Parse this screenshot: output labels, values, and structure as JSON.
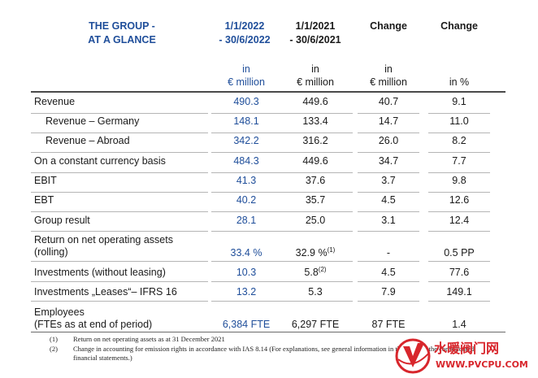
{
  "header": {
    "title": "THE GROUP -\nAT A GLANCE",
    "col1": "1/1/2022\n- 30/6/2022",
    "col2": "1/1/2021\n- 30/6/2021",
    "col3": "Change",
    "col4": "Change"
  },
  "units": {
    "col1": "in\n€ million",
    "col2": "in\n€ million",
    "col3": "in\n€ million",
    "col4": "in %"
  },
  "rows": [
    {
      "label": "Revenue",
      "v1": "490.3",
      "v2": "449.6",
      "v3": "40.7",
      "v4": "9.1"
    },
    {
      "label": "Revenue – Germany",
      "v1": "148.1",
      "v2": "133.4",
      "v3": "14.7",
      "v4": "11.0"
    },
    {
      "label": "Revenue – Abroad",
      "v1": "342.2",
      "v2": "316.2",
      "v3": "26.0",
      "v4": "8.2"
    },
    {
      "label": "On a constant currency basis",
      "v1": "484.3",
      "v2": "449.6",
      "v3": "34.7",
      "v4": "7.7"
    },
    {
      "label": "EBIT",
      "v1": "41.3",
      "v2": "37.6",
      "v3": "3.7",
      "v4": "9.8"
    },
    {
      "label": "EBT",
      "v1": "40.2",
      "v2": "35.7",
      "v3": "4.5",
      "v4": "12.6"
    },
    {
      "label": "Group result",
      "v1": "28.1",
      "v2": "25.0",
      "v3": "3.1",
      "v4": "12.4"
    },
    {
      "label": "Return on net operating assets\n(rolling)",
      "v1": "33.4 %",
      "v2": "32.9 %",
      "v2_sup": "(1)",
      "v3": "-",
      "v4": "0.5 PP"
    },
    {
      "label": "Investments (without leasing)",
      "v1": "10.3",
      "v2": "5.8",
      "v2_sup": "(2)",
      "v3": "4.5",
      "v4": "77.6"
    },
    {
      "label": "Investments „Leases“– IFRS 16",
      "v1": "13.2",
      "v2": "5.3",
      "v3": "7.9",
      "v4": "149.1"
    },
    {
      "label": "Employees\n(FTEs as at end of period)",
      "v1": "6,384 FTE",
      "v2": "6,297 FTE",
      "v3": "87 FTE",
      "v4": "1.4"
    }
  ],
  "footnotes": [
    {
      "num": "(1)",
      "text": "Return on net operating assets as at 31 December 2021"
    },
    {
      "num": "(2)",
      "text": "Change in accounting for emission rights in accordance with IAS 8.14 (For explanations, see general information in the notes to the consolidated\nfinancial statements.)"
    }
  ],
  "watermark": {
    "brand": "水暖阀门网",
    "url": "WWW.PVCPU.COM"
  },
  "colors": {
    "accent_blue": "#1f4e9a",
    "watermark_red": "#d8262c"
  }
}
